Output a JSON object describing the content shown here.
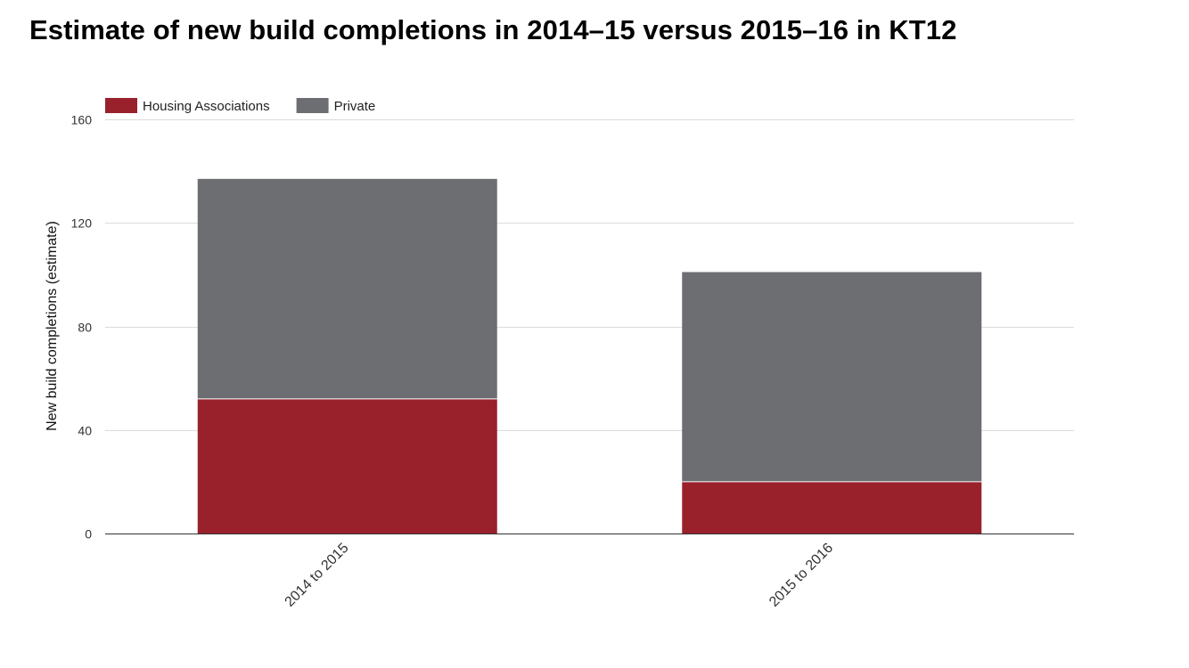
{
  "chart_data": {
    "type": "bar",
    "stacked": true,
    "title": "Estimate of new build completions in 2014–15 versus 2015–16 in KT12",
    "xlabel": "",
    "ylabel": "New build completions (estimate)",
    "categories": [
      "2014 to 2015",
      "2015 to 2016"
    ],
    "series": [
      {
        "name": "Housing Associations",
        "values": [
          52,
          20
        ],
        "color": "#99212c"
      },
      {
        "name": "Private",
        "values": [
          85,
          81
        ],
        "color": "#6d6e71"
      }
    ],
    "ylim": [
      0,
      160
    ],
    "yticks": [
      0,
      40,
      80,
      120,
      160
    ],
    "grid": true,
    "legend_position": "top-left"
  }
}
